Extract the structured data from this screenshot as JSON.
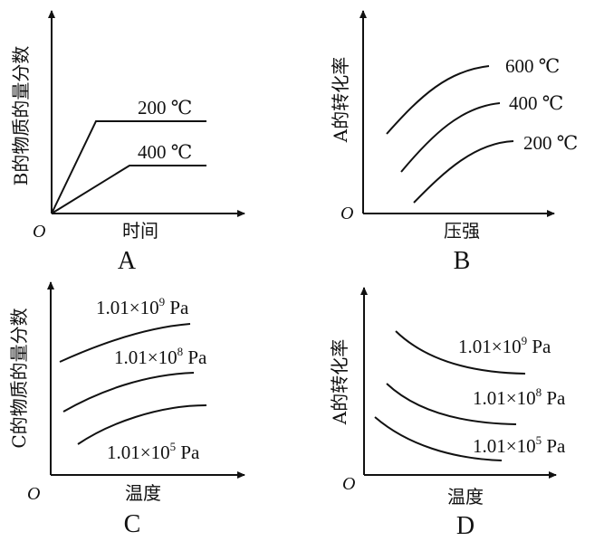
{
  "panels": [
    {
      "id": "A",
      "letter": "A",
      "origin": "O",
      "ylabel": "B的物质的量分数",
      "xlabel": "时间",
      "curves": [
        "200 ℃",
        "400 ℃"
      ]
    },
    {
      "id": "B",
      "letter": "B",
      "origin": "O",
      "ylabel": "A的转化率",
      "xlabel": "压强",
      "curves": [
        "600 ℃",
        "400 ℃",
        "200 ℃"
      ]
    },
    {
      "id": "C",
      "letter": "C",
      "origin": "O",
      "ylabel": "C的物质的量分数",
      "xlabel": "温度",
      "curves": [
        {
          "base": "1.01×10",
          "exp": "9",
          "unit": " Pa"
        },
        {
          "base": "1.01×10",
          "exp": "8",
          "unit": " Pa"
        },
        {
          "base": "1.01×10",
          "exp": "5",
          "unit": " Pa"
        }
      ]
    },
    {
      "id": "D",
      "letter": "D",
      "origin": "O",
      "ylabel": "A的转化率",
      "xlabel": "温度",
      "curves": [
        {
          "base": "1.01×10",
          "exp": "9",
          "unit": " Pa"
        },
        {
          "base": "1.01×10",
          "exp": "8",
          "unit": " Pa"
        },
        {
          "base": "1.01×10",
          "exp": "5",
          "unit": " Pa"
        }
      ]
    }
  ]
}
